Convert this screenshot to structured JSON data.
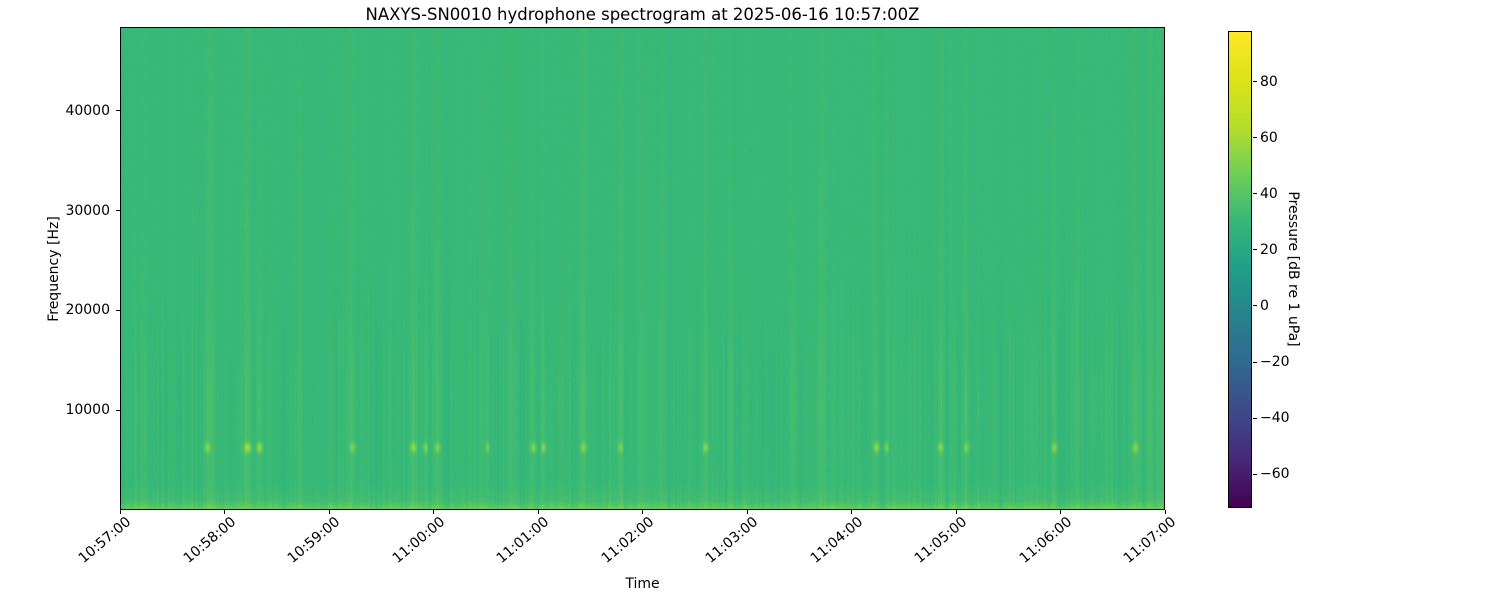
{
  "figure": {
    "title": "NAXYS-SN0010 hydrophone spectrogram at 2025-06-16 10:57:00Z",
    "xlabel": "Time",
    "ylabel": "Frequency [Hz]",
    "background_color": "#ffffff",
    "frame_color": "#000000"
  },
  "axes": {
    "x_tick_labels": [
      "10:57:00",
      "10:58:00",
      "10:59:00",
      "11:00:00",
      "11:01:00",
      "11:02:00",
      "11:03:00",
      "11:04:00",
      "11:05:00",
      "11:06:00",
      "11:07:00"
    ],
    "y_ticks": [
      {
        "value": 10000,
        "label": "10000"
      },
      {
        "value": 20000,
        "label": "20000"
      },
      {
        "value": 30000,
        "label": "30000"
      },
      {
        "value": 40000,
        "label": "40000"
      }
    ],
    "freq_max_hz": 48400
  },
  "colorbar": {
    "label": "Pressure [dB re 1 uPa]",
    "cmap": "viridis",
    "vmin": -72,
    "vmax": 98,
    "ticks": [
      {
        "value": 80,
        "label": "80"
      },
      {
        "value": 60,
        "label": "60"
      },
      {
        "value": 40,
        "label": "40"
      },
      {
        "value": 20,
        "label": "20"
      },
      {
        "value": 0,
        "label": "0"
      },
      {
        "value": -20,
        "label": "−20"
      },
      {
        "value": -40,
        "label": "−40"
      },
      {
        "value": -60,
        "label": "−60"
      }
    ],
    "viridis_stops": [
      "#440154",
      "#482878",
      "#3e4989",
      "#31688e",
      "#26828e",
      "#1f9e89",
      "#35b779",
      "#6ece58",
      "#b5de2b",
      "#dce319",
      "#fde725"
    ]
  },
  "chart_data": {
    "type": "heatmap",
    "subtype": "spectrogram",
    "title": "NAXYS-SN0010 hydrophone spectrogram at 2025-06-16 10:57:00Z",
    "xlabel": "Time",
    "ylabel": "Frequency [Hz]",
    "time_start": "10:57:00",
    "time_end": "11:07:00",
    "duration_s": 600,
    "ylim_hz": [
      0,
      48400
    ],
    "value_label": "Pressure [dB re 1 uPa]",
    "value_range_db": [
      -72,
      98
    ],
    "background_level_db": 31,
    "legend_position": "colorbar-right",
    "grid": false,
    "features": {
      "surface_band": {
        "freq_max_hz": 1500,
        "boost_db": 13
      },
      "tonal_burst_freq_hz": 6300,
      "stripe_zone_hz": [
        10000,
        16000
      ],
      "transients": [
        {
          "t": 50,
          "amp": 3.5,
          "w": 2,
          "dash": true,
          "dashAmp": 20
        },
        {
          "t": 53,
          "amp": 2.5,
          "w": 1.5,
          "dash": false
        },
        {
          "t": 73,
          "amp": 4,
          "w": 2.5,
          "dash": true,
          "dashAmp": 26
        },
        {
          "t": 80,
          "amp": 3,
          "w": 2,
          "dash": true,
          "dashAmp": 24
        },
        {
          "t": 103,
          "amp": 2,
          "w": 2,
          "dash": false
        },
        {
          "t": 133,
          "amp": 3.5,
          "w": 2,
          "dash": true,
          "dashAmp": 18
        },
        {
          "t": 168,
          "amp": 3,
          "w": 2,
          "dash": true,
          "dashAmp": 22
        },
        {
          "t": 175,
          "amp": 2.5,
          "w": 1.5,
          "dash": true,
          "dashAmp": 20
        },
        {
          "t": 182,
          "amp": 3,
          "w": 2,
          "dash": true,
          "dashAmp": 18
        },
        {
          "t": 194,
          "amp": 2,
          "w": 1.5,
          "dash": false
        },
        {
          "t": 211,
          "amp": 2.5,
          "w": 1.5,
          "dash": true,
          "dashAmp": 16
        },
        {
          "t": 224,
          "amp": 2,
          "w": 2,
          "dash": false
        },
        {
          "t": 237,
          "amp": 3,
          "w": 2,
          "dash": true,
          "dashAmp": 20
        },
        {
          "t": 243,
          "amp": 3,
          "w": 1.5,
          "dash": true,
          "dashAmp": 22
        },
        {
          "t": 266,
          "amp": 3.5,
          "w": 2,
          "dash": true,
          "dashAmp": 18
        },
        {
          "t": 287,
          "amp": 3,
          "w": 2,
          "dash": true,
          "dashAmp": 16
        },
        {
          "t": 299,
          "amp": 2,
          "w": 2,
          "dash": false
        },
        {
          "t": 310,
          "amp": 1.8,
          "w": 2,
          "dash": false
        },
        {
          "t": 336,
          "amp": 3,
          "w": 2,
          "dash": true,
          "dashAmp": 18
        },
        {
          "t": 350,
          "amp": 1.8,
          "w": 2,
          "dash": false
        },
        {
          "t": 385,
          "amp": 2,
          "w": 2.5,
          "dash": false
        },
        {
          "t": 402,
          "amp": 3.5,
          "w": 3,
          "dash": false
        },
        {
          "t": 421,
          "amp": 2,
          "w": 2,
          "dash": false
        },
        {
          "t": 434,
          "amp": 3,
          "w": 2,
          "dash": true,
          "dashAmp": 22
        },
        {
          "t": 440,
          "amp": 2.5,
          "w": 1.5,
          "dash": true,
          "dashAmp": 18
        },
        {
          "t": 471,
          "amp": 3,
          "w": 2,
          "dash": true,
          "dashAmp": 20
        },
        {
          "t": 486,
          "amp": 2.5,
          "w": 2,
          "dash": true,
          "dashAmp": 16
        },
        {
          "t": 500,
          "amp": 1.8,
          "w": 2,
          "dash": false
        },
        {
          "t": 536,
          "amp": 2.5,
          "w": 2,
          "dash": true,
          "dashAmp": 18
        },
        {
          "t": 549,
          "amp": 1.8,
          "w": 2,
          "dash": false
        },
        {
          "t": 583,
          "amp": 3,
          "w": 2,
          "dash": true,
          "dashAmp": 20
        },
        {
          "t": 591,
          "amp": 3.5,
          "w": 2.5,
          "dash": false
        },
        {
          "t": 596,
          "amp": 3,
          "w": 2,
          "dash": false
        }
      ]
    }
  }
}
